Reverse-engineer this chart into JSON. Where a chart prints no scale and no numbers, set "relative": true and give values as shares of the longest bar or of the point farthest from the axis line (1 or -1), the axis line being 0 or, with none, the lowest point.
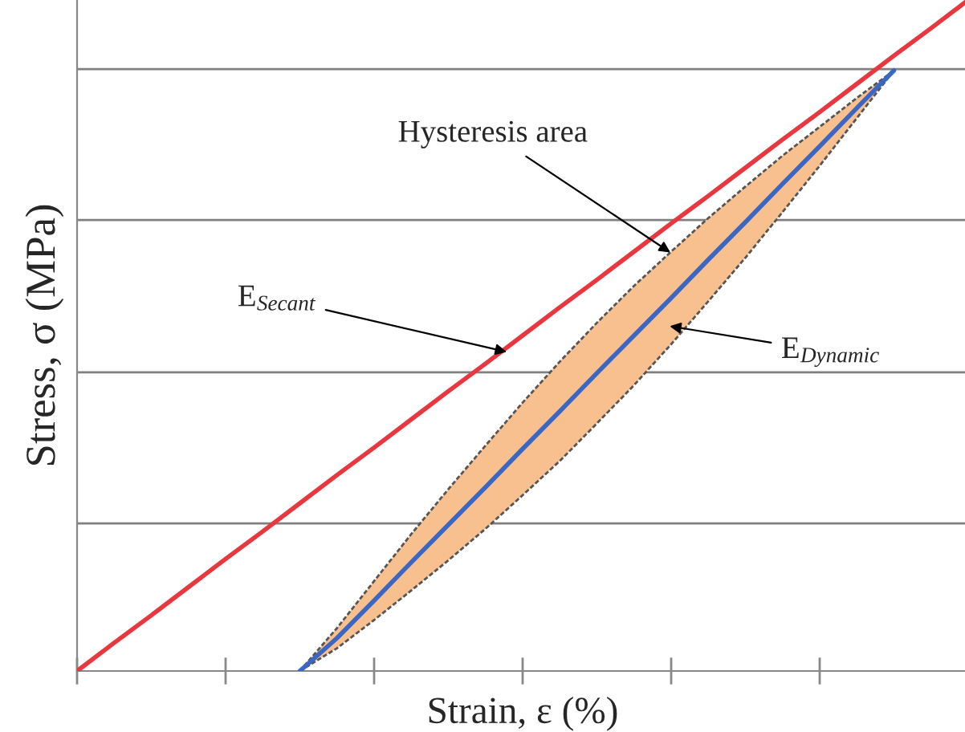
{
  "chart_data": {
    "type": "line",
    "relative": true,
    "xlabel": "Strain, ε (%)",
    "ylabel": "Stress, σ (MPa)",
    "categories": [
      null,
      null,
      null,
      null,
      null,
      null,
      null,
      null,
      null,
      null,
      null,
      null,
      null,
      null,
      null,
      null,
      null,
      null,
      null,
      null,
      null,
      null,
      null,
      null,
      null
    ],
    "series": [
      {
        "color": "#3a66c4",
        "values": [
          null,
          null,
          null,
          null,
          null,
          null,
          0,
          0.049,
          0.105,
          0.162,
          0.218,
          0.274,
          0.331,
          0.387,
          0.444,
          0.5,
          0.556,
          0.613,
          0.669,
          0.726,
          0.782,
          0.839,
          0.895,
          null,
          null
        ],
        "lower": [
          null,
          null,
          null,
          null,
          null,
          null,
          0,
          0.034,
          0.076,
          0.12,
          0.165,
          0.212,
          0.262,
          0.313,
          0.369,
          0.426,
          0.487,
          0.551,
          0.616,
          0.684,
          0.753,
          0.824,
          0.895,
          null,
          null
        ],
        "upper": [
          null,
          null,
          null,
          null,
          null,
          null,
          0,
          0.064,
          0.134,
          0.204,
          0.271,
          0.336,
          0.4,
          0.461,
          0.519,
          0.574,
          0.625,
          0.675,
          0.722,
          0.768,
          0.811,
          0.854,
          0.895,
          null,
          null
        ]
      },
      {
        "color": "#e8373f",
        "values": [
          0,
          0.042,
          0.083,
          0.125,
          0.167,
          0.208,
          0.25,
          0.292,
          0.333,
          0.375,
          0.417,
          0.458,
          0.5,
          0.542,
          0.583,
          0.625,
          0.667,
          0.708,
          0.75,
          0.792,
          0.833,
          0.875,
          0.917,
          0.958,
          1.0
        ]
      }
    ],
    "ref_lines": [
      {
        "axis": "y",
        "value": 0.22,
        "color": "#808080"
      },
      {
        "axis": "y",
        "value": 0.445,
        "color": "#808080"
      },
      {
        "axis": "y",
        "value": 0.672,
        "color": "#808080"
      },
      {
        "axis": "y",
        "value": 0.897,
        "color": "#808080"
      }
    ],
    "annotations": [
      "Hysteresis area",
      "E$_{Secant}$",
      "E$_{Dynamic}$"
    ],
    "grid": false,
    "legend": false
  }
}
